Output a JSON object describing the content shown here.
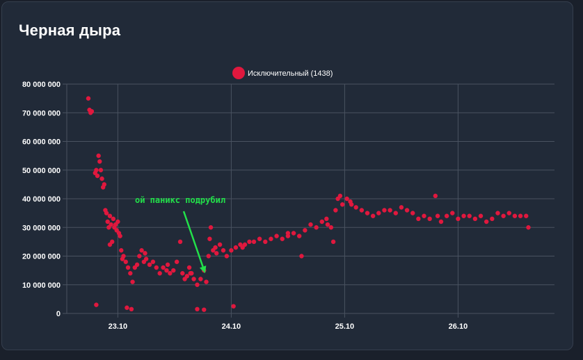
{
  "widget": {
    "title": "Черная дыра"
  },
  "chart_data": {
    "type": "scatter",
    "legend": {
      "label": "Исключительный (1438)",
      "position": "top-center"
    },
    "series_color": "#e0183e",
    "ylim": [
      0,
      80000000
    ],
    "y_ticks": [
      {
        "value": 0,
        "label": "0"
      },
      {
        "value": 10000000,
        "label": "10 000 000"
      },
      {
        "value": 20000000,
        "label": "20 000 000"
      },
      {
        "value": 30000000,
        "label": "30 000 000"
      },
      {
        "value": 40000000,
        "label": "40 000 000"
      },
      {
        "value": 50000000,
        "label": "50 000 000"
      },
      {
        "value": 60000000,
        "label": "60 000 000"
      },
      {
        "value": 70000000,
        "label": "70 000 000"
      },
      {
        "value": 80000000,
        "label": "80 000 000"
      }
    ],
    "x_ticks": [
      {
        "value": 23.0,
        "label": "23.10"
      },
      {
        "value": 24.0,
        "label": "24.10"
      },
      {
        "value": 25.0,
        "label": "25.10"
      },
      {
        "value": 26.0,
        "label": "26.10"
      }
    ],
    "xlim": [
      22.55,
      26.85
    ],
    "grid": true,
    "annotation": {
      "text": "ой паникс подрубил",
      "x": 23.77,
      "y": 14000000
    },
    "points": [
      [
        22.74,
        75000000
      ],
      [
        22.75,
        71000000
      ],
      [
        22.76,
        70000000
      ],
      [
        22.77,
        70500000
      ],
      [
        22.8,
        49000000
      ],
      [
        22.81,
        50000000
      ],
      [
        22.82,
        48000000
      ],
      [
        22.83,
        55000000
      ],
      [
        22.84,
        53000000
      ],
      [
        22.85,
        50000000
      ],
      [
        22.86,
        47000000
      ],
      [
        22.87,
        44000000
      ],
      [
        22.88,
        45000000
      ],
      [
        22.89,
        36000000
      ],
      [
        22.9,
        35000000
      ],
      [
        22.91,
        32000000
      ],
      [
        22.92,
        30000000
      ],
      [
        22.93,
        34000000
      ],
      [
        22.94,
        31000000
      ],
      [
        22.95,
        25000000
      ],
      [
        22.96,
        33000000
      ],
      [
        22.97,
        30000000
      ],
      [
        22.98,
        31000000
      ],
      [
        22.99,
        29000000
      ],
      [
        23.0,
        32000000
      ],
      [
        23.01,
        28000000
      ],
      [
        23.02,
        27000000
      ],
      [
        23.03,
        22000000
      ],
      [
        23.05,
        20000000
      ],
      [
        23.07,
        18000000
      ],
      [
        23.09,
        16000000
      ],
      [
        23.11,
        14000000
      ],
      [
        23.13,
        11000000
      ],
      [
        23.15,
        16000000
      ],
      [
        23.17,
        17000000
      ],
      [
        23.19,
        20000000
      ],
      [
        23.21,
        22000000
      ],
      [
        23.23,
        18000000
      ],
      [
        23.25,
        19000000
      ],
      [
        23.28,
        17000000
      ],
      [
        23.31,
        18000000
      ],
      [
        23.34,
        16000000
      ],
      [
        23.37,
        14000000
      ],
      [
        23.4,
        16000000
      ],
      [
        23.43,
        15000000
      ],
      [
        23.46,
        14000000
      ],
      [
        23.49,
        15000000
      ],
      [
        23.52,
        18000000
      ],
      [
        23.55,
        25000000
      ],
      [
        23.57,
        14000000
      ],
      [
        23.59,
        12000000
      ],
      [
        23.61,
        13000000
      ],
      [
        23.63,
        16000000
      ],
      [
        23.65,
        14000000
      ],
      [
        23.67,
        12000000
      ],
      [
        23.7,
        10000000
      ],
      [
        23.73,
        12000000
      ],
      [
        23.76,
        15000000
      ],
      [
        23.78,
        11000000
      ],
      [
        23.8,
        20000000
      ],
      [
        23.81,
        26000000
      ],
      [
        23.82,
        30000000
      ],
      [
        23.84,
        22000000
      ],
      [
        23.87,
        21000000
      ],
      [
        23.9,
        24000000
      ],
      [
        23.93,
        22000000
      ],
      [
        23.96,
        20000000
      ],
      [
        24.0,
        22000000
      ],
      [
        24.04,
        23000000
      ],
      [
        24.08,
        24000000
      ],
      [
        24.12,
        24000000
      ],
      [
        24.16,
        25000000
      ],
      [
        24.2,
        25000000
      ],
      [
        24.25,
        26000000
      ],
      [
        24.3,
        25000000
      ],
      [
        24.35,
        26000000
      ],
      [
        24.4,
        27000000
      ],
      [
        24.45,
        26000000
      ],
      [
        24.5,
        27000000
      ],
      [
        24.55,
        28000000
      ],
      [
        24.6,
        27000000
      ],
      [
        24.62,
        20000000
      ],
      [
        24.65,
        29000000
      ],
      [
        24.7,
        31000000
      ],
      [
        24.75,
        30000000
      ],
      [
        24.8,
        32000000
      ],
      [
        24.85,
        31000000
      ],
      [
        24.88,
        30000000
      ],
      [
        24.9,
        25000000
      ],
      [
        24.92,
        36000000
      ],
      [
        24.94,
        40000000
      ],
      [
        24.96,
        41000000
      ],
      [
        24.98,
        38000000
      ],
      [
        25.02,
        40000000
      ],
      [
        25.06,
        38000000
      ],
      [
        25.1,
        37000000
      ],
      [
        25.15,
        36000000
      ],
      [
        25.2,
        35000000
      ],
      [
        25.25,
        34000000
      ],
      [
        25.3,
        35000000
      ],
      [
        25.35,
        36000000
      ],
      [
        25.4,
        36000000
      ],
      [
        25.45,
        35000000
      ],
      [
        25.5,
        37000000
      ],
      [
        25.55,
        36000000
      ],
      [
        25.6,
        35000000
      ],
      [
        25.65,
        33000000
      ],
      [
        25.7,
        34000000
      ],
      [
        25.75,
        33000000
      ],
      [
        25.8,
        41000000
      ],
      [
        25.82,
        34000000
      ],
      [
        25.85,
        32000000
      ],
      [
        25.9,
        34000000
      ],
      [
        25.95,
        35000000
      ],
      [
        26.0,
        33000000
      ],
      [
        26.05,
        34000000
      ],
      [
        26.1,
        34000000
      ],
      [
        26.15,
        33000000
      ],
      [
        26.2,
        34000000
      ],
      [
        26.25,
        32000000
      ],
      [
        26.3,
        33000000
      ],
      [
        26.35,
        35000000
      ],
      [
        26.4,
        34000000
      ],
      [
        26.45,
        35000000
      ],
      [
        26.5,
        34000000
      ],
      [
        26.55,
        34000000
      ],
      [
        26.6,
        34000000
      ],
      [
        26.62,
        30000000
      ],
      [
        22.81,
        3000000
      ],
      [
        23.08,
        2000000
      ],
      [
        23.12,
        1500000
      ],
      [
        23.7,
        1500000
      ],
      [
        23.76,
        1300000
      ],
      [
        24.02,
        2500000
      ],
      [
        22.93,
        24000000
      ],
      [
        23.04,
        19000000
      ],
      [
        23.24,
        21000000
      ],
      [
        23.44,
        17000000
      ],
      [
        23.64,
        14000000
      ],
      [
        23.86,
        23000000
      ],
      [
        24.1,
        23000000
      ],
      [
        24.5,
        28000000
      ],
      [
        24.84,
        33000000
      ],
      [
        25.05,
        39000000
      ]
    ]
  }
}
